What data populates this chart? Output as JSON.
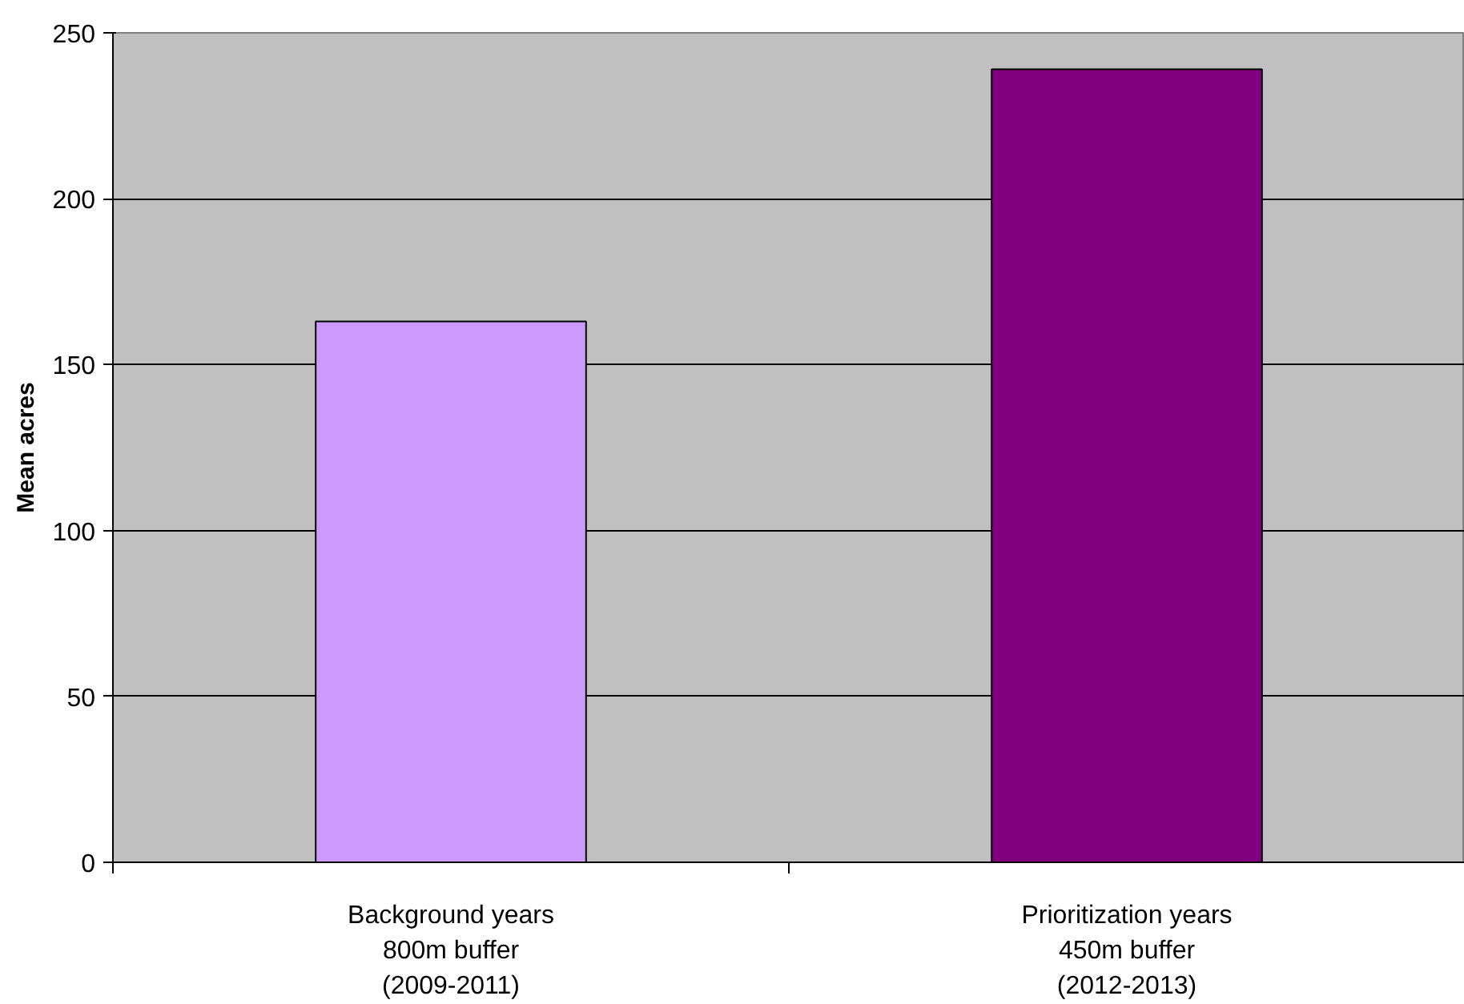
{
  "chart_data": {
    "type": "bar",
    "ylabel": "Mean acres",
    "categories": [
      "Background years\n800m buffer\n(2009-2011)",
      "Prioritization years\n450m buffer\n(2012-2013)"
    ],
    "values": [
      163,
      239
    ],
    "colors": [
      "#cc99ff",
      "#800080"
    ],
    "ylim": [
      0,
      250
    ],
    "yticks": [
      0,
      50,
      100,
      150,
      200,
      250
    ],
    "grid": "y"
  }
}
